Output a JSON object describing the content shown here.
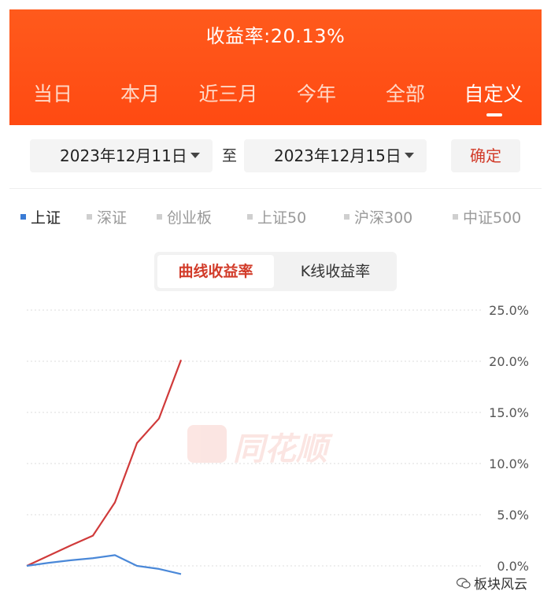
{
  "header": {
    "yield_label": "收益率:20.13%",
    "tabs": [
      "当日",
      "本月",
      "近三月",
      "今年",
      "全部",
      "自定义"
    ],
    "active_tab": "自定义"
  },
  "date_range": {
    "start": "2023年12月11日",
    "to_label": "至",
    "end": "2023年12月15日",
    "confirm_label": "确定"
  },
  "legend": {
    "items": [
      "上证",
      "深证",
      "创业板",
      "上证50",
      "沪深300",
      "中证500"
    ],
    "active": "上证"
  },
  "chart_mode": {
    "options": [
      "曲线收益率",
      "K线收益率"
    ],
    "active": "曲线收益率"
  },
  "watermark": "同花顺",
  "credit": "板块风云",
  "colors": {
    "header": "#ff5016",
    "portfolio_line": "#d03a3a",
    "index_line": "#4a88d8",
    "accent_text": "#d23c2a"
  },
  "chart_data": {
    "type": "line",
    "x": [
      0,
      1,
      2,
      3,
      4,
      5,
      6,
      7
    ],
    "series": [
      {
        "values": [
          0.0,
          1.0,
          2.0,
          2.95,
          6.2,
          12.0,
          14.4,
          20.13
        ]
      },
      {
        "values": [
          0.0,
          0.3,
          0.55,
          0.75,
          1.05,
          0.0,
          -0.3,
          -0.8
        ]
      }
    ],
    "y_ticks": [
      "25.0%",
      "20.0%",
      "15.0%",
      "10.0%",
      "5.0%",
      "0.0%"
    ],
    "ylim": [
      0,
      25
    ],
    "grid": true
  }
}
